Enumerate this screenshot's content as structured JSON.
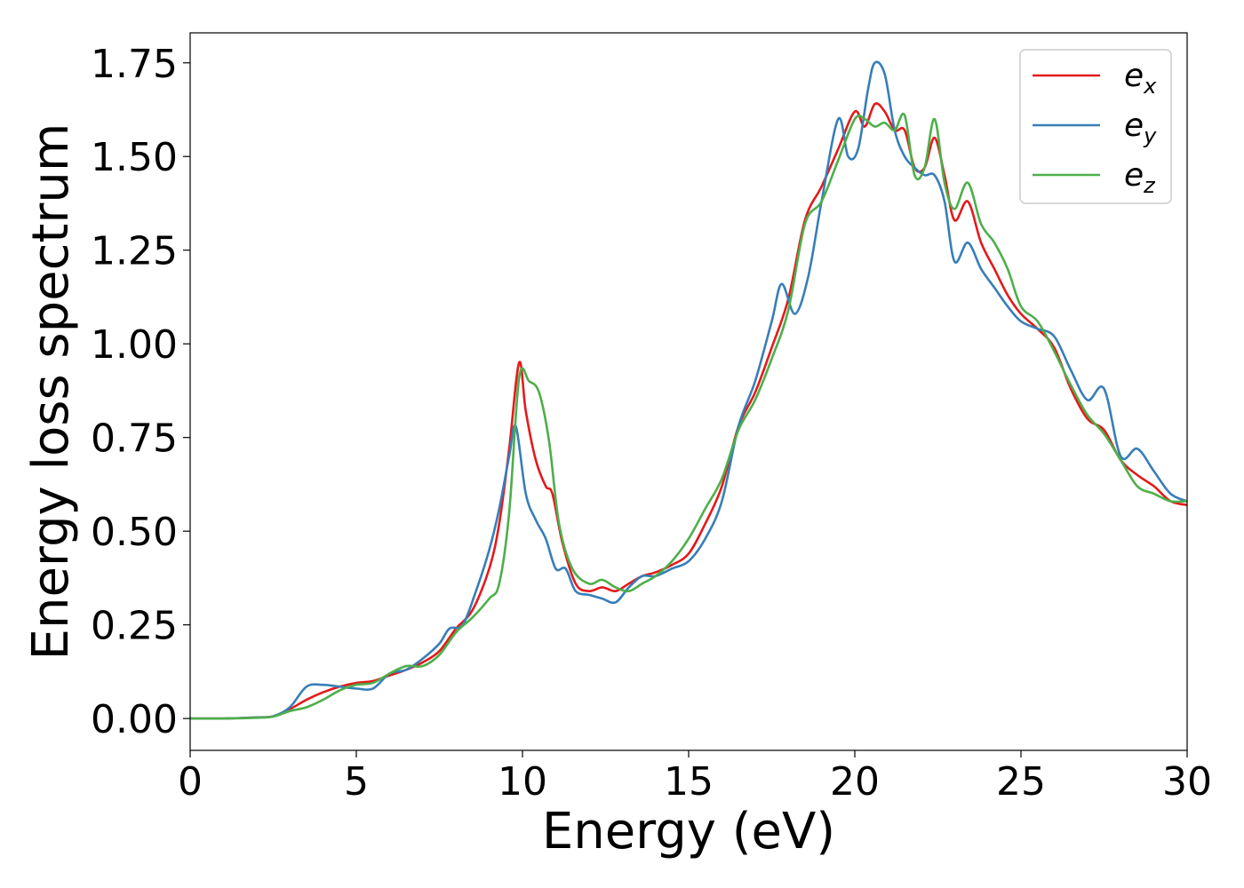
{
  "chart_data": {
    "type": "line",
    "xlabel": "Energy (eV)",
    "ylabel": "Energy loss spectrum",
    "xlim": [
      0,
      30
    ],
    "ylim": [
      -0.085,
      1.83
    ],
    "xticks": [
      0,
      5,
      10,
      15,
      20,
      25,
      30
    ],
    "xtick_labels": [
      "0",
      "5",
      "10",
      "15",
      "20",
      "25",
      "30"
    ],
    "yticks": [
      0,
      0.25,
      0.5,
      0.75,
      1.0,
      1.25,
      1.5,
      1.75
    ],
    "ytick_labels": [
      "0.00",
      "0.25",
      "0.50",
      "0.75",
      "1.00",
      "1.25",
      "1.50",
      "1.75"
    ],
    "grid": false,
    "legend_position": "top-right",
    "series": [
      {
        "name": "e_x",
        "label_base": "e",
        "label_sub": "x",
        "color": "#e41a1c",
        "x": [
          0,
          1,
          2,
          2.5,
          3,
          3.5,
          4,
          4.5,
          5,
          5.5,
          6,
          6.5,
          7,
          7.5,
          8,
          8.5,
          9,
          9.3,
          9.6,
          9.9,
          10.1,
          10.4,
          10.7,
          10.9,
          11.2,
          11.6,
          12,
          12.4,
          12.8,
          13.2,
          13.6,
          14,
          14.5,
          15,
          15.5,
          16,
          16.5,
          17,
          17.5,
          18,
          18.5,
          19,
          19.5,
          20,
          20.3,
          20.6,
          20.9,
          21.2,
          21.5,
          21.8,
          22.1,
          22.4,
          22.7,
          23,
          23.4,
          23.8,
          24.2,
          24.6,
          25,
          25.5,
          26,
          26.5,
          27,
          27.5,
          28,
          28.5,
          29,
          29.5,
          30
        ],
        "y": [
          0,
          0,
          0.003,
          0.006,
          0.025,
          0.05,
          0.07,
          0.085,
          0.095,
          0.1,
          0.115,
          0.13,
          0.15,
          0.18,
          0.24,
          0.29,
          0.4,
          0.52,
          0.72,
          0.95,
          0.82,
          0.69,
          0.62,
          0.6,
          0.47,
          0.36,
          0.34,
          0.35,
          0.34,
          0.36,
          0.38,
          0.39,
          0.41,
          0.44,
          0.52,
          0.62,
          0.78,
          0.87,
          0.99,
          1.12,
          1.33,
          1.42,
          1.52,
          1.62,
          1.58,
          1.64,
          1.62,
          1.57,
          1.57,
          1.47,
          1.47,
          1.55,
          1.45,
          1.33,
          1.38,
          1.27,
          1.2,
          1.13,
          1.08,
          1.04,
          0.99,
          0.88,
          0.8,
          0.77,
          0.69,
          0.65,
          0.62,
          0.58,
          0.57
        ]
      },
      {
        "name": "e_y",
        "label_base": "e",
        "label_sub": "y",
        "color": "#377eb8",
        "x": [
          0,
          1,
          2,
          2.5,
          3,
          3.5,
          4,
          4.5,
          5,
          5.5,
          6,
          6.5,
          7,
          7.5,
          7.8,
          8.2,
          8.6,
          9,
          9.3,
          9.6,
          9.8,
          10.1,
          10.4,
          10.7,
          11,
          11.3,
          11.6,
          12,
          12.4,
          12.8,
          13.2,
          13.6,
          14,
          14.5,
          15,
          15.5,
          16,
          16.5,
          17,
          17.5,
          17.8,
          18.2,
          18.6,
          19,
          19.5,
          19.8,
          20.1,
          20.4,
          20.6,
          20.9,
          21.2,
          21.5,
          21.8,
          22.1,
          22.4,
          22.7,
          23,
          23.4,
          23.8,
          24.2,
          24.6,
          25,
          25.5,
          26,
          26.5,
          27,
          27.5,
          28,
          28.5,
          29,
          29.5,
          30
        ],
        "y": [
          0,
          0,
          0.003,
          0.006,
          0.03,
          0.085,
          0.09,
          0.085,
          0.08,
          0.08,
          0.12,
          0.13,
          0.16,
          0.2,
          0.24,
          0.25,
          0.34,
          0.45,
          0.56,
          0.7,
          0.78,
          0.6,
          0.53,
          0.48,
          0.4,
          0.4,
          0.34,
          0.33,
          0.32,
          0.31,
          0.35,
          0.38,
          0.38,
          0.4,
          0.42,
          0.48,
          0.58,
          0.78,
          0.9,
          1.06,
          1.16,
          1.08,
          1.18,
          1.38,
          1.6,
          1.5,
          1.52,
          1.68,
          1.75,
          1.72,
          1.57,
          1.5,
          1.47,
          1.45,
          1.45,
          1.38,
          1.22,
          1.27,
          1.2,
          1.15,
          1.1,
          1.06,
          1.04,
          1.02,
          0.93,
          0.85,
          0.88,
          0.7,
          0.72,
          0.66,
          0.6,
          0.58
        ]
      },
      {
        "name": "e_z",
        "label_base": "e",
        "label_sub": "z",
        "color": "#4daf4a",
        "x": [
          0,
          1,
          2,
          2.5,
          3,
          3.5,
          4,
          4.5,
          5,
          5.5,
          6,
          6.5,
          7,
          7.5,
          8,
          8.5,
          9,
          9.3,
          9.6,
          9.9,
          10.2,
          10.5,
          10.8,
          11.1,
          11.5,
          12,
          12.4,
          12.8,
          13.2,
          13.6,
          14,
          14.5,
          15,
          15.5,
          16,
          16.5,
          17,
          17.5,
          18,
          18.5,
          19,
          19.5,
          20,
          20.3,
          20.6,
          20.9,
          21.2,
          21.5,
          21.8,
          22.1,
          22.4,
          22.7,
          23,
          23.4,
          23.8,
          24.2,
          24.6,
          25,
          25.5,
          26,
          26.5,
          27,
          27.5,
          28,
          28.5,
          29,
          29.5,
          30
        ],
        "y": [
          0,
          0,
          0.002,
          0.005,
          0.02,
          0.03,
          0.05,
          0.075,
          0.09,
          0.095,
          0.12,
          0.14,
          0.14,
          0.17,
          0.23,
          0.27,
          0.32,
          0.36,
          0.55,
          0.91,
          0.9,
          0.87,
          0.74,
          0.52,
          0.4,
          0.36,
          0.37,
          0.35,
          0.34,
          0.36,
          0.38,
          0.42,
          0.48,
          0.56,
          0.64,
          0.77,
          0.85,
          0.96,
          1.09,
          1.32,
          1.38,
          1.49,
          1.6,
          1.6,
          1.58,
          1.59,
          1.57,
          1.61,
          1.45,
          1.47,
          1.6,
          1.43,
          1.36,
          1.43,
          1.32,
          1.27,
          1.2,
          1.1,
          1.06,
          0.98,
          0.89,
          0.81,
          0.76,
          0.69,
          0.62,
          0.6,
          0.58,
          0.58
        ]
      }
    ]
  }
}
